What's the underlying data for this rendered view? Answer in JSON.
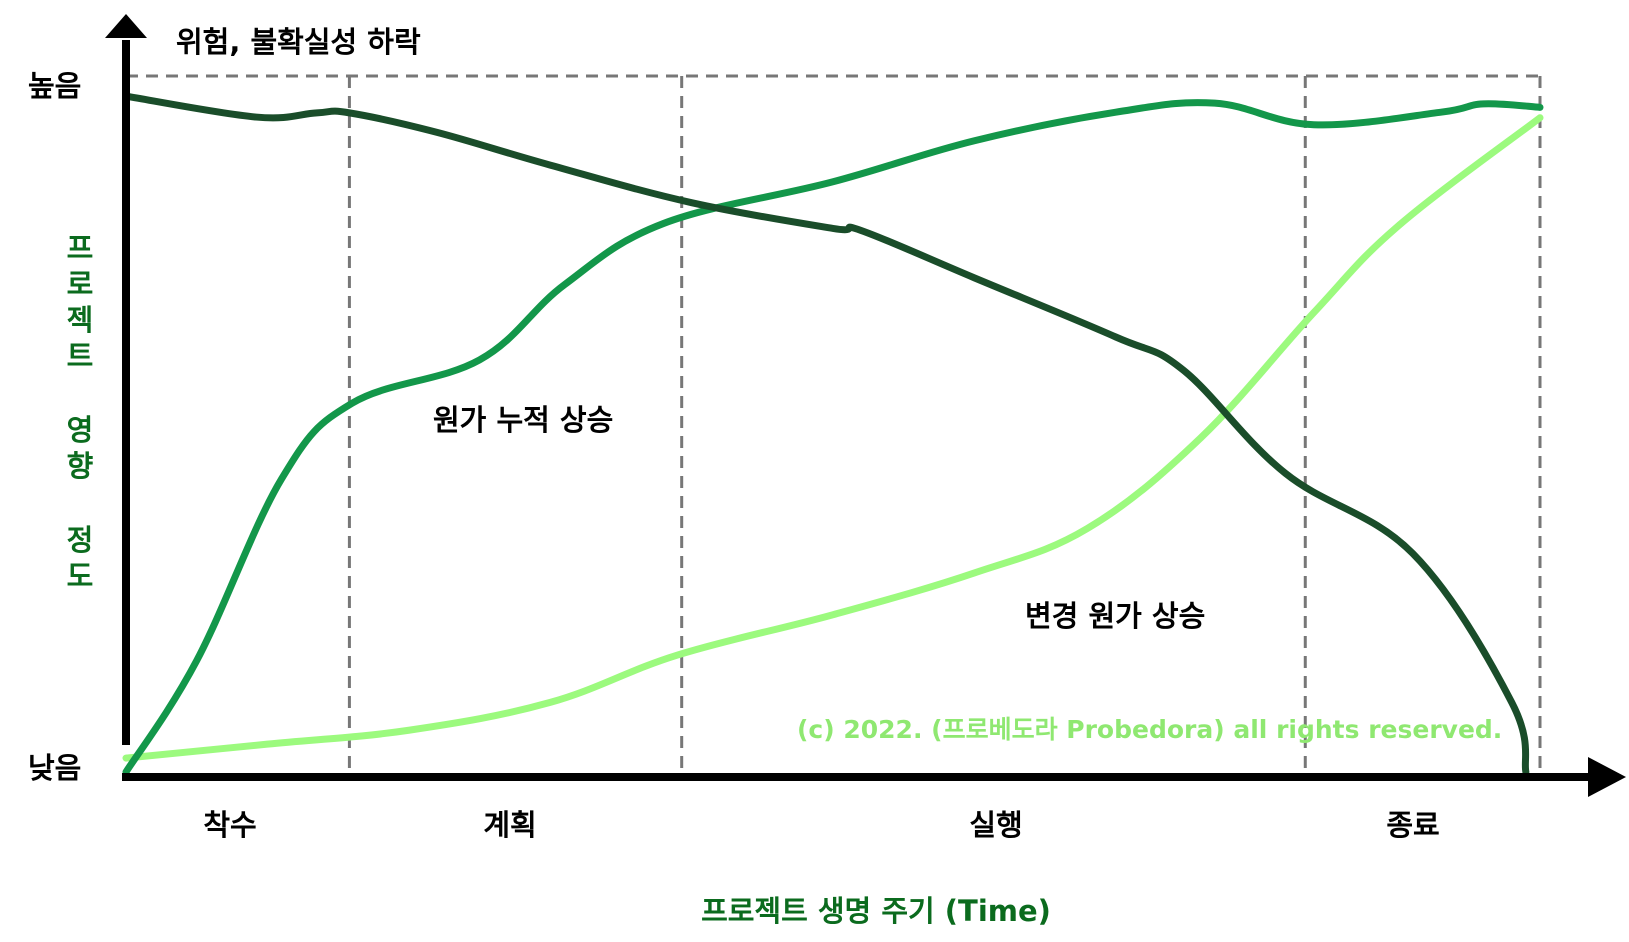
{
  "chart_data": {
    "type": "line",
    "title": "",
    "xlabel": "프로젝트 생명 주기 (Time)",
    "ylabel": "프로젝트 영향 정도",
    "y_high_label": "높음",
    "y_low_label": "낮음",
    "phases": [
      "착수",
      "계획",
      "실행",
      "종료"
    ],
    "phase_boundaries": [
      0.158,
      0.393,
      0.834,
      1.0
    ],
    "x_range": [
      0,
      1
    ],
    "y_range": [
      0,
      1
    ],
    "grid": "dashed phase boundaries",
    "legend": "none",
    "series": [
      {
        "name": "위험, 불확실성 하락",
        "color": "#1a4d2a",
        "x": [
          0,
          0.092,
          0.135,
          0.158,
          0.22,
          0.3,
          0.4,
          0.5,
          0.52,
          0.6,
          0.7,
          0.748,
          0.82,
          0.91,
          0.98,
          0.99
        ],
        "y": [
          0.971,
          0.941,
          0.947,
          0.947,
          0.919,
          0.872,
          0.818,
          0.781,
          0.778,
          0.71,
          0.625,
          0.577,
          0.429,
          0.314,
          0.1,
          0.0
        ]
      },
      {
        "name": "원가 누적 상승",
        "color": "#13974a",
        "x": [
          0,
          0.05,
          0.11,
          0.16,
          0.25,
          0.31,
          0.38,
          0.5,
          0.6,
          0.7,
          0.77,
          0.84,
          0.93,
          0.96,
          1.0
        ],
        "y": [
          0.0,
          0.16,
          0.421,
          0.53,
          0.592,
          0.7,
          0.788,
          0.848,
          0.907,
          0.948,
          0.961,
          0.93,
          0.948,
          0.96,
          0.955
        ]
      },
      {
        "name": "변경 원가 상승",
        "color": "#9cfa7e",
        "x": [
          0,
          0.1,
          0.2,
          0.3,
          0.39,
          0.5,
          0.6,
          0.68,
          0.76,
          0.84,
          0.9,
          1.0
        ],
        "y": [
          0.02,
          0.04,
          0.06,
          0.1,
          0.168,
          0.226,
          0.286,
          0.35,
          0.48,
          0.66,
          0.785,
          0.94
        ]
      }
    ],
    "annotations": [
      {
        "text": "위험, 불확실성 하락",
        "color": "#000000"
      },
      {
        "text": "원가 누적 상승",
        "color": "#000000"
      },
      {
        "text": "변경 원가 상승",
        "color": "#000000"
      },
      {
        "text": "(c) 2022. (프로베도라 Probedora) all rights reserved.",
        "color": "#8fe871"
      }
    ]
  }
}
